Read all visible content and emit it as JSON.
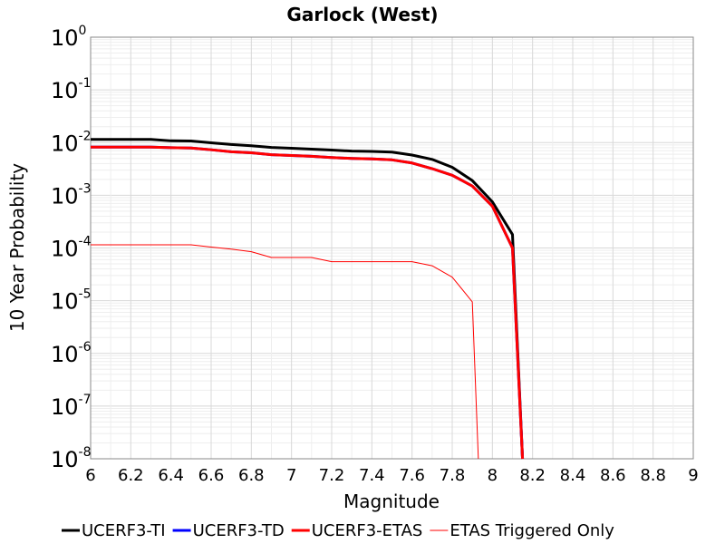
{
  "chart_data": {
    "type": "line",
    "title": "Garlock (West)",
    "xlabel": "Magnitude",
    "ylabel": "10 Year Probability",
    "xlim": [
      6,
      9
    ],
    "ylim": [
      1e-08,
      1
    ],
    "yscale": "log",
    "grid": true,
    "legend_position": "bottom",
    "x_ticks": [
      "6",
      "6.2",
      "6.4",
      "6.6",
      "6.8",
      "7",
      "7.2",
      "7.4",
      "7.6",
      "7.8",
      "8",
      "8.2",
      "8.4",
      "8.6",
      "8.8",
      "9"
    ],
    "y_ticks": [
      {
        "base": "10",
        "exp": "0"
      },
      {
        "base": "10",
        "exp": "-1"
      },
      {
        "base": "10",
        "exp": "-2"
      },
      {
        "base": "10",
        "exp": "-3"
      },
      {
        "base": "10",
        "exp": "-4"
      },
      {
        "base": "10",
        "exp": "-5"
      },
      {
        "base": "10",
        "exp": "-6"
      },
      {
        "base": "10",
        "exp": "-7"
      },
      {
        "base": "10",
        "exp": "-8"
      }
    ],
    "series": [
      {
        "name": "UCERF3-TI",
        "color": "#000000",
        "width": 3,
        "x": [
          6.0,
          6.1,
          6.2,
          6.3,
          6.4,
          6.5,
          6.6,
          6.7,
          6.8,
          6.9,
          7.0,
          7.1,
          7.2,
          7.3,
          7.4,
          7.5,
          7.6,
          7.7,
          7.8,
          7.9,
          8.0,
          8.1,
          8.15
        ],
        "y": [
          0.0115,
          0.0115,
          0.0115,
          0.0115,
          0.0108,
          0.0107,
          0.0099,
          0.0092,
          0.0087,
          0.0081,
          0.0078,
          0.0075,
          0.0072,
          0.0069,
          0.0068,
          0.0066,
          0.0058,
          0.0048,
          0.0034,
          0.0019,
          0.00075,
          0.00018,
          1e-08
        ]
      },
      {
        "name": "UCERF3-TD",
        "color": "#0000ff",
        "width": 3,
        "x": [
          6.0,
          6.1,
          6.2,
          6.3,
          6.4,
          6.5,
          6.6,
          6.7,
          6.8,
          6.9,
          7.0,
          7.1,
          7.2,
          7.3,
          7.4,
          7.5,
          7.6,
          7.7,
          7.8,
          7.9,
          8.0,
          8.1,
          8.15
        ],
        "y": [
          0.0082,
          0.0082,
          0.0082,
          0.0082,
          0.008,
          0.0079,
          0.0073,
          0.0067,
          0.0064,
          0.0059,
          0.0057,
          0.0055,
          0.0052,
          0.005,
          0.0049,
          0.0047,
          0.0041,
          0.0032,
          0.0024,
          0.0015,
          0.00062,
          0.0001,
          1e-08
        ]
      },
      {
        "name": "UCERF3-ETAS",
        "color": "#ff0000",
        "width": 3,
        "x": [
          6.0,
          6.1,
          6.2,
          6.3,
          6.4,
          6.5,
          6.6,
          6.7,
          6.8,
          6.9,
          7.0,
          7.1,
          7.2,
          7.3,
          7.4,
          7.5,
          7.6,
          7.7,
          7.8,
          7.9,
          8.0,
          8.1,
          8.15
        ],
        "y": [
          0.0082,
          0.0082,
          0.0082,
          0.0082,
          0.008,
          0.0079,
          0.0073,
          0.0067,
          0.0064,
          0.0059,
          0.0057,
          0.0055,
          0.0052,
          0.005,
          0.0049,
          0.0047,
          0.0041,
          0.0032,
          0.0024,
          0.0015,
          0.00062,
          0.0001,
          1e-08
        ]
      },
      {
        "name": "ETAS Triggered Only",
        "color": "#ff0000",
        "width": 1,
        "x": [
          6.0,
          6.1,
          6.2,
          6.3,
          6.4,
          6.5,
          6.6,
          6.7,
          6.8,
          6.9,
          7.0,
          7.1,
          7.2,
          7.3,
          7.4,
          7.5,
          7.6,
          7.7,
          7.8,
          7.9,
          7.93
        ],
        "y": [
          0.000115,
          0.000115,
          0.000115,
          0.000115,
          0.000115,
          0.000115,
          0.000104,
          9.5e-05,
          8.5e-05,
          6.6e-05,
          6.6e-05,
          6.6e-05,
          5.5e-05,
          5.5e-05,
          5.5e-05,
          5.5e-05,
          5.5e-05,
          4.6e-05,
          2.8e-05,
          9.5e-06,
          1e-08
        ]
      }
    ]
  }
}
